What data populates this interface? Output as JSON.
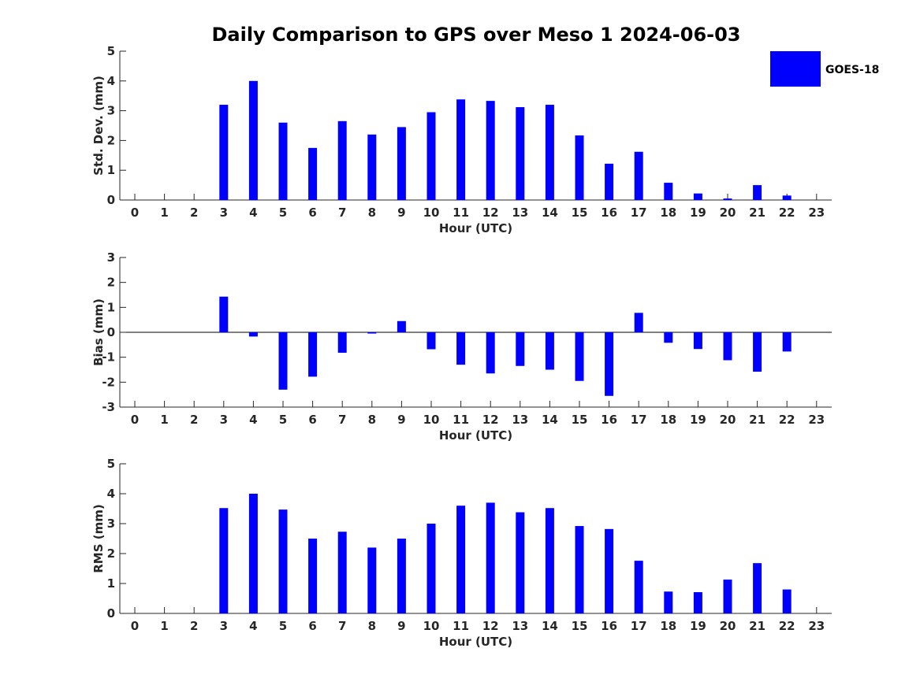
{
  "title": "Daily Comparison to GPS over Meso 1 2024-06-03",
  "legend": {
    "label": "GOES-18",
    "color": "#0000ff",
    "placement": "top-right"
  },
  "chart_data": [
    {
      "type": "bar",
      "categories": [
        "0",
        "1",
        "2",
        "3",
        "4",
        "5",
        "6",
        "7",
        "8",
        "9",
        "10",
        "11",
        "12",
        "13",
        "14",
        "15",
        "16",
        "17",
        "18",
        "19",
        "20",
        "21",
        "22",
        "23"
      ],
      "series": [
        {
          "name": "GOES-18",
          "values": [
            null,
            null,
            null,
            3.2,
            4.0,
            2.6,
            1.75,
            2.65,
            2.2,
            2.45,
            2.95,
            3.38,
            3.33,
            3.12,
            3.2,
            2.17,
            1.22,
            1.62,
            0.58,
            0.22,
            0.05,
            0.5,
            0.15,
            null
          ]
        }
      ],
      "xlabel": "Hour (UTC)",
      "ylabel": "Std. Dev. (mm)",
      "ylim": [
        0,
        5
      ],
      "yticks": [
        "0",
        "1",
        "2",
        "3",
        "4",
        "5"
      ],
      "color": "#0000ff",
      "grid": false
    },
    {
      "type": "bar",
      "categories": [
        "0",
        "1",
        "2",
        "3",
        "4",
        "5",
        "6",
        "7",
        "8",
        "9",
        "10",
        "11",
        "12",
        "13",
        "14",
        "15",
        "16",
        "17",
        "18",
        "19",
        "20",
        "21",
        "22",
        "23"
      ],
      "series": [
        {
          "name": "GOES-18",
          "values": [
            null,
            null,
            null,
            1.43,
            -0.17,
            -2.3,
            -1.78,
            -0.82,
            -0.05,
            0.45,
            -0.68,
            -1.3,
            -1.65,
            -1.35,
            -1.5,
            -1.95,
            -2.55,
            0.78,
            -0.42,
            -0.67,
            -1.12,
            -1.58,
            -0.77,
            null
          ]
        }
      ],
      "xlabel": "Hour (UTC)",
      "ylabel": "Bias (mm)",
      "ylim": [
        -3,
        3
      ],
      "yticks": [
        "-3",
        "-2",
        "-1",
        "0",
        "1",
        "2",
        "3"
      ],
      "color": "#0000ff",
      "zero_line": true,
      "grid": false
    },
    {
      "type": "bar",
      "categories": [
        "0",
        "1",
        "2",
        "3",
        "4",
        "5",
        "6",
        "7",
        "8",
        "9",
        "10",
        "11",
        "12",
        "13",
        "14",
        "15",
        "16",
        "17",
        "18",
        "19",
        "20",
        "21",
        "22",
        "23"
      ],
      "series": [
        {
          "name": "GOES-18",
          "values": [
            null,
            null,
            null,
            3.52,
            4.0,
            3.47,
            2.5,
            2.73,
            2.2,
            2.5,
            3.0,
            3.6,
            3.7,
            3.38,
            3.52,
            2.92,
            2.82,
            1.76,
            0.73,
            0.71,
            1.13,
            1.68,
            0.8,
            null
          ]
        }
      ],
      "xlabel": "Hour (UTC)",
      "ylabel": "RMS (mm)",
      "ylim": [
        0,
        5
      ],
      "yticks": [
        "0",
        "1",
        "2",
        "3",
        "4",
        "5"
      ],
      "color": "#0000ff",
      "grid": false
    }
  ]
}
